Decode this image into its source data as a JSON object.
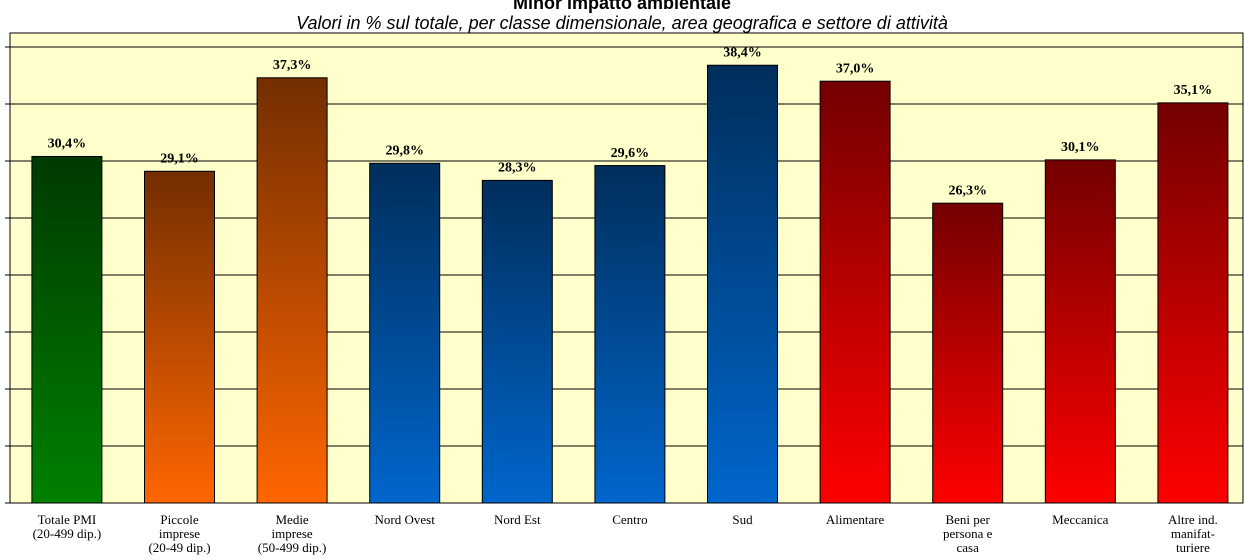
{
  "chart_data": {
    "type": "bar",
    "title": "Minor impatto ambientale",
    "subtitle": "Valori in % sul totale, per classe dimensionale, area geografica e settore di attività",
    "categories": [
      [
        "Totale PMI",
        "(20-499 dip.)"
      ],
      [
        "Piccole",
        "imprese",
        "(20-49 dip.)"
      ],
      [
        "Medie",
        "imprese",
        "(50-499 dip.)"
      ],
      [
        "Nord Ovest"
      ],
      [
        "Nord Est"
      ],
      [
        "Centro"
      ],
      [
        "Sud"
      ],
      [
        "Alimentare"
      ],
      [
        "Beni per",
        "persona e",
        "casa"
      ],
      [
        "Meccanica"
      ],
      [
        "Altre ind.",
        "manifat-",
        "turiere"
      ]
    ],
    "values": [
      30.4,
      29.1,
      37.3,
      29.8,
      28.3,
      29.6,
      38.4,
      37.0,
      26.3,
      30.1,
      35.1
    ],
    "value_labels": [
      "30,4%",
      "29,1%",
      "37,3%",
      "29,8%",
      "28,3%",
      "29,6%",
      "38,4%",
      "37,0%",
      "26,3%",
      "30,1%",
      "35,1%"
    ],
    "colors": [
      "#008000",
      "#ff6600",
      "#ff6600",
      "#0066cc",
      "#0066cc",
      "#0066cc",
      "#0066cc",
      "#ff0000",
      "#ff0000",
      "#ff0000",
      "#ff0000"
    ],
    "ylim": [
      0,
      40
    ],
    "yticks": [
      0,
      5,
      10,
      15,
      20,
      25,
      30,
      35,
      40
    ],
    "grid": true
  }
}
